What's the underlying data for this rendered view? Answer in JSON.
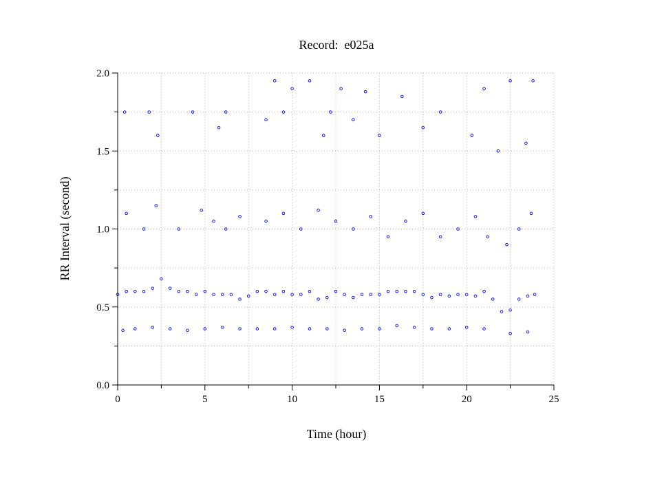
{
  "chart_data": {
    "type": "scatter",
    "title": "Record:  e025a",
    "xlabel": "Time (hour)",
    "ylabel": "RR Interval (second)",
    "xlim": [
      0,
      25
    ],
    "ylim": [
      0,
      2.0
    ],
    "x_ticks": [
      0,
      5,
      10,
      15,
      20,
      25
    ],
    "x_tick_labels": [
      "0",
      "5",
      "10",
      "15",
      "20",
      "25"
    ],
    "y_ticks": [
      0.0,
      0.5,
      1.0,
      1.5,
      2.0
    ],
    "y_tick_labels": [
      "0.0",
      "0.5",
      "1.0",
      "1.5",
      "2.0"
    ],
    "grid": true,
    "series_color": "#0000ff",
    "series": [
      {
        "marker": "open-circle",
        "x": [
          0.0,
          0.5,
          1.0,
          1.5,
          2.0,
          2.5,
          3.0,
          3.5,
          4.0,
          4.5,
          5.0,
          5.5,
          6.0,
          6.5,
          7.0,
          7.5,
          8.0,
          8.5,
          9.0,
          9.5,
          10.0,
          10.5,
          11.0,
          11.5,
          12.0,
          12.5,
          13.0,
          13.5,
          14.0,
          14.5,
          15.0,
          15.5,
          16.0,
          16.5,
          17.0,
          17.5,
          18.0,
          18.5,
          19.0,
          19.5,
          20.0,
          20.5,
          21.0,
          21.5,
          22.0,
          22.5,
          23.0,
          23.5,
          23.9
        ],
        "y": [
          0.58,
          0.6,
          0.6,
          0.6,
          0.62,
          0.68,
          0.62,
          0.6,
          0.6,
          0.58,
          0.6,
          0.58,
          0.58,
          0.58,
          0.55,
          0.57,
          0.6,
          0.6,
          0.58,
          0.6,
          0.58,
          0.58,
          0.6,
          0.55,
          0.56,
          0.6,
          0.58,
          0.56,
          0.58,
          0.58,
          0.58,
          0.6,
          0.6,
          0.6,
          0.6,
          0.58,
          0.56,
          0.58,
          0.57,
          0.58,
          0.58,
          0.57,
          0.6,
          0.55,
          0.47,
          0.48,
          0.55,
          0.57,
          0.58
        ]
      },
      {
        "marker": "open-circle",
        "x": [
          0.3,
          1.0,
          2.0,
          3.0,
          4.0,
          5.0,
          6.0,
          7.0,
          8.0,
          9.0,
          10.0,
          11.0,
          12.0,
          13.0,
          14.0,
          15.0,
          16.0,
          17.0,
          18.0,
          19.0,
          20.0,
          21.0,
          22.5,
          23.5
        ],
        "y": [
          0.35,
          0.36,
          0.37,
          0.36,
          0.35,
          0.36,
          0.37,
          0.36,
          0.36,
          0.36,
          0.37,
          0.36,
          0.36,
          0.35,
          0.36,
          0.36,
          0.38,
          0.37,
          0.36,
          0.36,
          0.37,
          0.36,
          0.33,
          0.34
        ]
      },
      {
        "marker": "open-circle",
        "x": [
          0.5,
          1.5,
          2.2,
          3.5,
          4.8,
          5.5,
          6.2,
          7.0,
          8.5,
          9.5,
          10.5,
          11.5,
          12.5,
          13.5,
          14.5,
          15.5,
          16.5,
          17.5,
          18.5,
          19.5,
          20.5,
          21.2,
          22.3,
          23.0,
          23.7
        ],
        "y": [
          1.1,
          1.0,
          1.15,
          1.0,
          1.12,
          1.05,
          1.0,
          1.08,
          1.05,
          1.1,
          1.0,
          1.12,
          1.05,
          1.0,
          1.08,
          0.95,
          1.05,
          1.1,
          0.95,
          1.0,
          1.08,
          0.95,
          0.9,
          1.0,
          1.1
        ]
      },
      {
        "marker": "open-circle",
        "x": [
          0.4,
          1.8,
          2.3,
          4.3,
          5.8,
          6.2,
          8.5,
          9.0,
          9.5,
          10.0,
          11.0,
          11.8,
          12.2,
          12.8,
          13.5,
          14.2,
          15.0,
          16.3,
          17.5,
          18.5,
          20.3,
          21.0,
          21.8,
          22.5,
          23.4,
          23.8
        ],
        "y": [
          1.75,
          1.75,
          1.6,
          1.75,
          1.65,
          1.75,
          1.7,
          1.95,
          1.75,
          1.9,
          1.95,
          1.6,
          1.75,
          1.9,
          1.7,
          1.88,
          1.6,
          1.85,
          1.65,
          1.75,
          1.6,
          1.9,
          1.5,
          1.95,
          1.55,
          1.95
        ]
      }
    ]
  }
}
